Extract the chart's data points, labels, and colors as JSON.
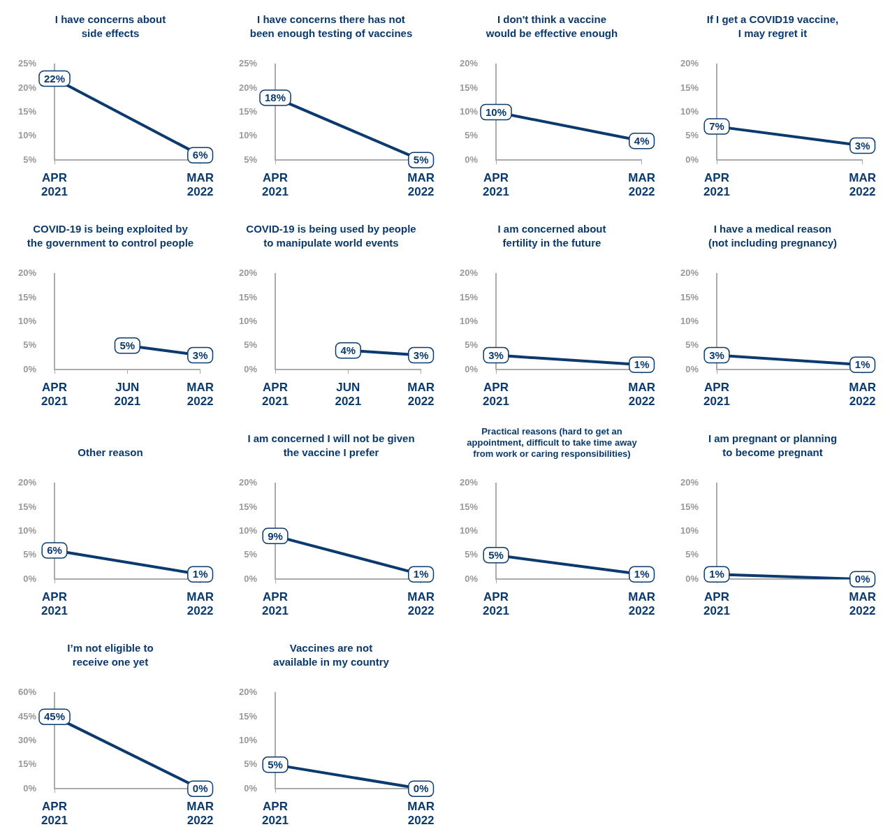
{
  "chart_data": [
    {
      "type": "line",
      "marker": "square",
      "title": "I have concerns about\nside effects",
      "categories": [
        "APR 2021",
        "MAR 2022"
      ],
      "values": [
        22,
        6
      ],
      "value_labels": [
        "22%",
        "6%"
      ],
      "color": "#0b3a6e",
      "ylim": [
        5,
        25
      ],
      "yticks": [
        {
          "value": 5,
          "label": "5%"
        },
        {
          "value": 10,
          "label": "10%"
        },
        {
          "value": 15,
          "label": "15%"
        },
        {
          "value": 20,
          "label": "20%"
        },
        {
          "value": 25,
          "label": "25%"
        }
      ]
    },
    {
      "type": "line",
      "marker": "square",
      "title": "I have concerns there has not\nbeen enough testing of vaccines",
      "categories": [
        "APR 2021",
        "MAR 2022"
      ],
      "values": [
        18,
        5
      ],
      "value_labels": [
        "18%",
        "5%"
      ],
      "color": "#0b3a6e",
      "ylim": [
        5,
        25
      ],
      "yticks": [
        {
          "value": 5,
          "label": "5%"
        },
        {
          "value": 10,
          "label": "10%"
        },
        {
          "value": 15,
          "label": "15%"
        },
        {
          "value": 20,
          "label": "20%"
        },
        {
          "value": 25,
          "label": "25%"
        }
      ]
    },
    {
      "type": "line",
      "marker": "square",
      "title": "I don't think a vaccine\nwould be effective enough",
      "categories": [
        "APR 2021",
        "MAR 2022"
      ],
      "values": [
        10,
        4
      ],
      "value_labels": [
        "10%",
        "4%"
      ],
      "color": "#0b3a6e",
      "ylim": [
        0,
        20
      ],
      "yticks": [
        {
          "value": 0,
          "label": "0%"
        },
        {
          "value": 5,
          "label": "5%"
        },
        {
          "value": 10,
          "label": "10%"
        },
        {
          "value": 15,
          "label": "15%"
        },
        {
          "value": 20,
          "label": "20%"
        }
      ]
    },
    {
      "type": "line",
      "marker": "square",
      "title": "If I get a COVID19 vaccine,\nI may regret it",
      "categories": [
        "APR 2021",
        "MAR 2022"
      ],
      "values": [
        7,
        3
      ],
      "value_labels": [
        "7%",
        "3%"
      ],
      "color": "#0b3a6e",
      "ylim": [
        0,
        20
      ],
      "yticks": [
        {
          "value": 0,
          "label": "0%"
        },
        {
          "value": 5,
          "label": "5%"
        },
        {
          "value": 10,
          "label": "10%"
        },
        {
          "value": 15,
          "label": "15%"
        },
        {
          "value": 20,
          "label": "20%"
        }
      ]
    },
    {
      "type": "line",
      "marker": "square",
      "title": "COVID-19 is being exploited by\nthe government to control people",
      "categories": [
        "APR 2021",
        "JUN 2021",
        "MAR 2022"
      ],
      "values": [
        null,
        5,
        3
      ],
      "value_labels": [
        null,
        "5%",
        "3%"
      ],
      "color": "#0b3a6e",
      "ylim": [
        0,
        20
      ],
      "yticks": [
        {
          "value": 0,
          "label": "0%"
        },
        {
          "value": 5,
          "label": "5%"
        },
        {
          "value": 10,
          "label": "10%"
        },
        {
          "value": 15,
          "label": "15%"
        },
        {
          "value": 20,
          "label": "20%"
        }
      ]
    },
    {
      "type": "line",
      "marker": "square",
      "title": "COVID-19 is being used by people\nto manipulate world events",
      "categories": [
        "APR 2021",
        "JUN 2021",
        "MAR 2022"
      ],
      "values": [
        null,
        4,
        3
      ],
      "value_labels": [
        null,
        "4%",
        "3%"
      ],
      "color": "#0b3a6e",
      "ylim": [
        0,
        20
      ],
      "yticks": [
        {
          "value": 0,
          "label": "0%"
        },
        {
          "value": 5,
          "label": "5%"
        },
        {
          "value": 10,
          "label": "10%"
        },
        {
          "value": 15,
          "label": "15%"
        },
        {
          "value": 20,
          "label": "20%"
        }
      ]
    },
    {
      "type": "line",
      "marker": "square",
      "title": "I am concerned about\nfertility in the future",
      "categories": [
        "APR 2021",
        "MAR 2022"
      ],
      "values": [
        3,
        1
      ],
      "value_labels": [
        "3%",
        "1%"
      ],
      "color": "#0b3a6e",
      "ylim": [
        0,
        20
      ],
      "yticks": [
        {
          "value": 0,
          "label": "0%"
        },
        {
          "value": 5,
          "label": "5%"
        },
        {
          "value": 10,
          "label": "10%"
        },
        {
          "value": 15,
          "label": "15%"
        },
        {
          "value": 20,
          "label": "20%"
        }
      ]
    },
    {
      "type": "line",
      "marker": "square",
      "title": "I have a medical reason\n(not including pregnancy)",
      "categories": [
        "APR 2021",
        "MAR 2022"
      ],
      "values": [
        3,
        1
      ],
      "value_labels": [
        "3%",
        "1%"
      ],
      "color": "#0b3a6e",
      "ylim": [
        0,
        20
      ],
      "yticks": [
        {
          "value": 0,
          "label": "0%"
        },
        {
          "value": 5,
          "label": "5%"
        },
        {
          "value": 10,
          "label": "10%"
        },
        {
          "value": 15,
          "label": "15%"
        },
        {
          "value": 20,
          "label": "20%"
        }
      ]
    },
    {
      "type": "line",
      "marker": "square",
      "title": "Other reason",
      "categories": [
        "APR 2021",
        "MAR 2022"
      ],
      "values": [
        6,
        1
      ],
      "value_labels": [
        "6%",
        "1%"
      ],
      "color": "#0b3a6e",
      "ylim": [
        0,
        20
      ],
      "yticks": [
        {
          "value": 0,
          "label": "0%"
        },
        {
          "value": 5,
          "label": "5%"
        },
        {
          "value": 10,
          "label": "10%"
        },
        {
          "value": 15,
          "label": "15%"
        },
        {
          "value": 20,
          "label": "20%"
        }
      ]
    },
    {
      "type": "line",
      "marker": "square",
      "title": "I am concerned I will not be given\nthe vaccine I prefer",
      "categories": [
        "APR 2021",
        "MAR 2022"
      ],
      "values": [
        9,
        1
      ],
      "value_labels": [
        "9%",
        "1%"
      ],
      "color": "#0b3a6e",
      "ylim": [
        0,
        20
      ],
      "yticks": [
        {
          "value": 0,
          "label": "0%"
        },
        {
          "value": 5,
          "label": "5%"
        },
        {
          "value": 10,
          "label": "10%"
        },
        {
          "value": 15,
          "label": "15%"
        },
        {
          "value": 20,
          "label": "20%"
        }
      ]
    },
    {
      "type": "line",
      "marker": "square",
      "title": "Practical reasons (hard to get an\nappointment, difficult to take time away\nfrom work or caring responsibilities)",
      "categories": [
        "APR 2021",
        "MAR 2022"
      ],
      "values": [
        5,
        1
      ],
      "value_labels": [
        "5%",
        "1%"
      ],
      "color": "#0b3a6e",
      "ylim": [
        0,
        20
      ],
      "yticks": [
        {
          "value": 0,
          "label": "0%"
        },
        {
          "value": 5,
          "label": "5%"
        },
        {
          "value": 10,
          "label": "10%"
        },
        {
          "value": 15,
          "label": "15%"
        },
        {
          "value": 20,
          "label": "20%"
        }
      ]
    },
    {
      "type": "line",
      "marker": "square",
      "title": "I am pregnant or planning\nto become pregnant",
      "categories": [
        "APR 2021",
        "MAR 2022"
      ],
      "values": [
        1,
        0
      ],
      "value_labels": [
        "1%",
        "0%"
      ],
      "color": "#0b3a6e",
      "ylim": [
        0,
        20
      ],
      "yticks": [
        {
          "value": 0,
          "label": "0%"
        },
        {
          "value": 5,
          "label": "5%"
        },
        {
          "value": 10,
          "label": "10%"
        },
        {
          "value": 15,
          "label": "15%"
        },
        {
          "value": 20,
          "label": "20%"
        }
      ]
    },
    {
      "type": "line",
      "marker": "square",
      "title": "I’m not eligible to\nreceive one yet",
      "categories": [
        "APR 2021",
        "MAR 2022"
      ],
      "values": [
        45,
        0
      ],
      "value_labels": [
        "45%",
        "0%"
      ],
      "color": "#0b3a6e",
      "ylim": [
        0,
        60
      ],
      "yticks": [
        {
          "value": 0,
          "label": "0%"
        },
        {
          "value": 15,
          "label": "15%"
        },
        {
          "value": 30,
          "label": "30%"
        },
        {
          "value": 45,
          "label": "45%"
        },
        {
          "value": 60,
          "label": "60%"
        }
      ]
    },
    {
      "type": "line",
      "marker": "square",
      "title": "Vaccines are not\navailable in my country",
      "categories": [
        "APR 2021",
        "MAR 2022"
      ],
      "values": [
        5,
        0
      ],
      "value_labels": [
        "5%",
        "0%"
      ],
      "color": "#0b3a6e",
      "ylim": [
        0,
        20
      ],
      "yticks": [
        {
          "value": 0,
          "label": "0%"
        },
        {
          "value": 5,
          "label": "5%"
        },
        {
          "value": 10,
          "label": "10%"
        },
        {
          "value": 15,
          "label": "15%"
        },
        {
          "value": 20,
          "label": "20%"
        }
      ]
    }
  ]
}
